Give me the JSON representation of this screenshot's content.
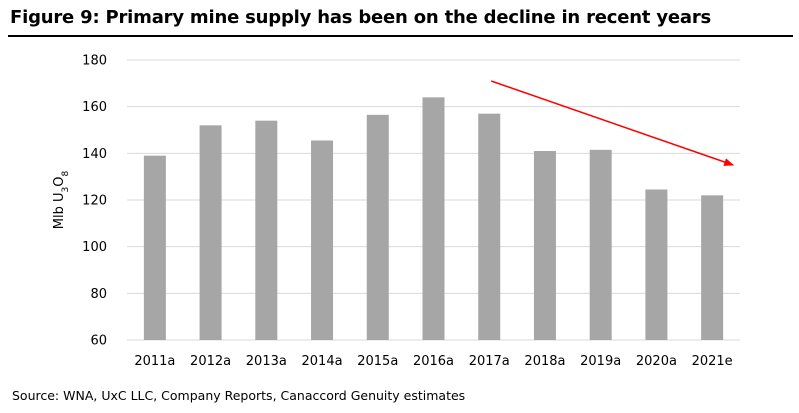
{
  "title": "Figure 9: Primary mine supply has been on the decline in recent years",
  "source": "Source: WNA, UxC LLC, Company Reports, Canaccord Genuity estimates",
  "chart_data": {
    "type": "bar",
    "title": "Figure 9: Primary mine supply has been on the decline in recent years",
    "xlabel": "",
    "ylabel": "Mlb U3O8",
    "ylim": [
      60,
      180
    ],
    "yticks": [
      60,
      80,
      100,
      120,
      140,
      160,
      180
    ],
    "grid": true,
    "categories": [
      "2011a",
      "2012a",
      "2013a",
      "2014a",
      "2015a",
      "2016a",
      "2017a",
      "2018a",
      "2019a",
      "2020a",
      "2021e"
    ],
    "values": [
      139,
      152,
      154,
      145.5,
      156.5,
      164,
      157,
      141,
      141.5,
      124.5,
      122
    ],
    "bar_color": "#a6a6a6",
    "annotations": [
      {
        "type": "arrow",
        "description": "downward trend",
        "from": [
          "2017a",
          171
        ],
        "to": [
          "2021e",
          135
        ],
        "color": "#ff0000"
      }
    ]
  }
}
